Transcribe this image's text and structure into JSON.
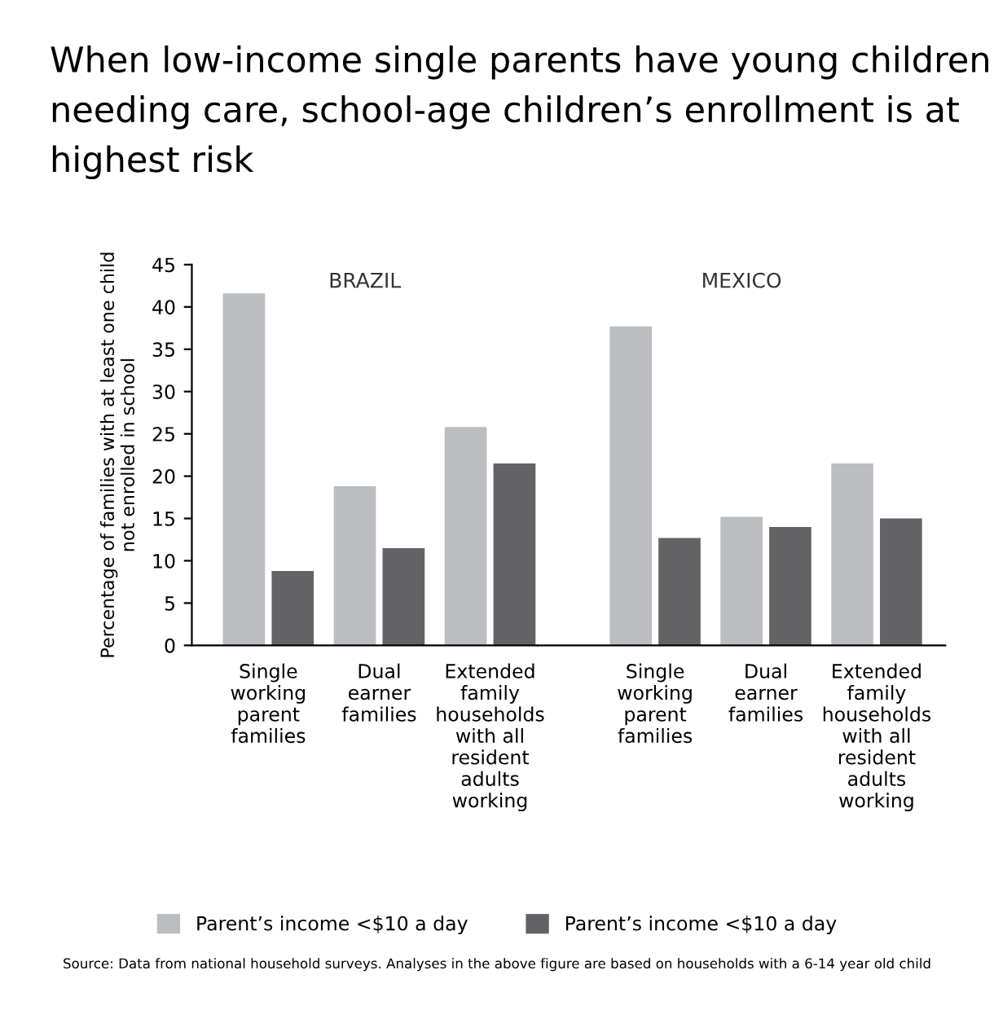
{
  "chart_data": [
    {
      "type": "bar",
      "title": "BRAZIL",
      "ylabel": "Percentage of families with at least one child\nnot enrolled in school",
      "categories": [
        "Single\nworking\nparent\nfamilies",
        "Dual\nearner\nfamilies",
        "Extended\nfamily\nhouseholds\nwith all\nresident\nadults\nworking"
      ],
      "series": [
        {
          "name": "Parent’s income <$10 a day",
          "color": "#bcbdc0",
          "values": [
            41.6,
            18.8,
            25.8
          ]
        },
        {
          "name": "Parent’s income <$10 a day",
          "color": "#636365",
          "values": [
            8.8,
            11.5,
            21.5
          ]
        }
      ],
      "ylim": [
        0,
        45
      ],
      "yticks": [
        0,
        5,
        10,
        15,
        20,
        25,
        30,
        35,
        40,
        45
      ],
      "grid": false,
      "legend": "bottom",
      "annotations": [
        "When low-income single parents have young children needing care, school-age children’s enrollment is at highest risk",
        "Source: Data from national household surveys. Analyses in the above figure are based on households with a 6-14 year old child"
      ]
    },
    {
      "type": "bar",
      "title": "MEXICO",
      "categories": [
        "Single\nworking\nparent\nfamilies",
        "Dual\nearner\nfamilies",
        "Extended\nfamily\nhouseholds\nwith all\nresident\nadults\nworking"
      ],
      "series": [
        {
          "color": "#bcbdc0",
          "values": [
            37.7,
            15.2,
            21.5
          ]
        },
        {
          "color": "#636365",
          "values": [
            12.7,
            14.0,
            15.0
          ]
        }
      ],
      "ylim": [
        0,
        45
      ],
      "tick_labels": "x",
      "grid": false
    }
  ]
}
